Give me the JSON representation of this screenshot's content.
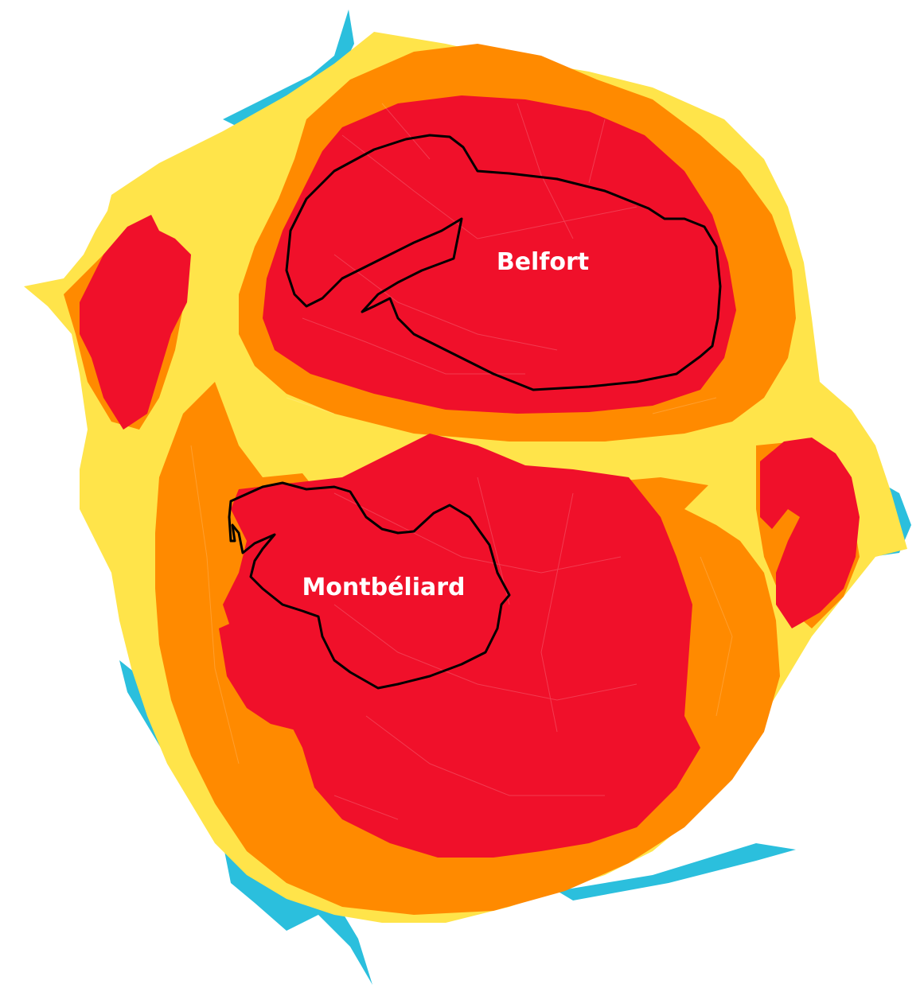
{
  "map": {
    "colors": {
      "class_1": "#2bbfdd",
      "class_2": "#ffe44a",
      "class_3": "#ff8a00",
      "class_4": "#f0102a",
      "outline": "#000000",
      "label": "#ffffff"
    },
    "labels": {
      "belfort": "Belfort",
      "montbeliard": "Montbéliard"
    }
  }
}
